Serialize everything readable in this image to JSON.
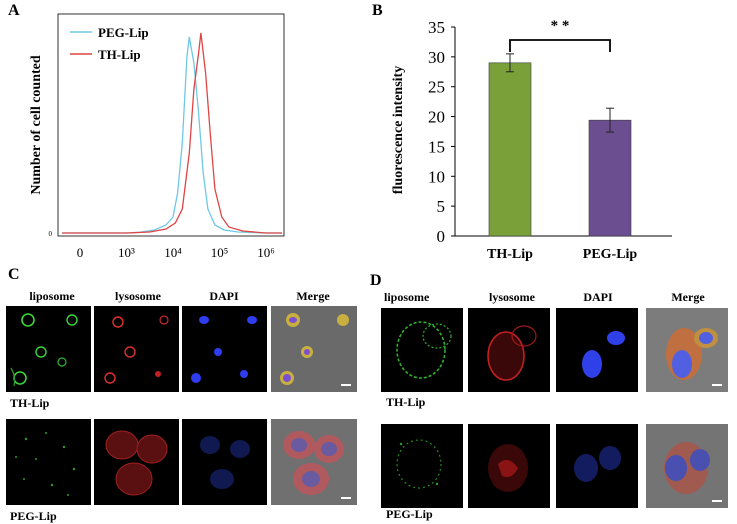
{
  "panels": {
    "a": {
      "letter": "A"
    },
    "b": {
      "letter": "B"
    },
    "c": {
      "letter": "C"
    },
    "d": {
      "letter": "D"
    }
  },
  "chart_data": [
    {
      "type": "line",
      "panel": "A",
      "ylabel": "Number of cell counted",
      "x_ticks": [
        "0",
        "10³",
        "10⁴",
        "10⁵",
        "10⁶"
      ],
      "y_ticks": [
        "0"
      ],
      "x_scale": "log",
      "legend_position": "top-left",
      "series": [
        {
          "name": "PEG-Lip",
          "color": "#6ec8e8",
          "x": [
            3,
            3.3,
            3.6,
            3.85,
            4.0,
            4.1,
            4.2,
            4.3,
            4.35,
            4.45,
            4.55,
            4.65,
            4.75,
            4.9,
            5.1,
            5.4,
            6
          ],
          "y": [
            0,
            0.4,
            1.5,
            4,
            8,
            20,
            45,
            88,
            98,
            85,
            60,
            30,
            12,
            4,
            1.5,
            0.5,
            0
          ]
        },
        {
          "name": "TH-Lip",
          "color": "#e04545",
          "x": [
            3,
            3.5,
            3.85,
            4.05,
            4.2,
            4.35,
            4.45,
            4.55,
            4.6,
            4.7,
            4.8,
            4.9,
            5.05,
            5.2,
            5.5,
            6
          ],
          "y": [
            0,
            0.5,
            2,
            5,
            12,
            40,
            72,
            90,
            100,
            80,
            50,
            22,
            8,
            3,
            1,
            0
          ]
        }
      ]
    },
    {
      "type": "bar",
      "panel": "B",
      "ylabel": "fluorescence intensity",
      "categories": [
        "TH-Lip",
        "PEG-Lip"
      ],
      "values": [
        29,
        19.4
      ],
      "errors": [
        1.5,
        2.0
      ],
      "colors": [
        "#7aa03a",
        "#6a4e8f"
      ],
      "ylim": [
        0,
        35
      ],
      "y_ticks": [
        "0",
        "5",
        "10",
        "15",
        "20",
        "25",
        "30",
        "35"
      ],
      "annotation": "* *"
    }
  ],
  "micrographs": {
    "c": {
      "columns": [
        "liposome",
        "lysosome",
        "DAPI",
        "Merge"
      ],
      "rows": [
        "TH-Lip",
        "PEG-Lip"
      ]
    },
    "d": {
      "columns": [
        "liposome",
        "lysosome",
        "DAPI",
        "Merge"
      ],
      "rows": [
        "TH-Lip",
        "PEG-Lip"
      ]
    }
  }
}
